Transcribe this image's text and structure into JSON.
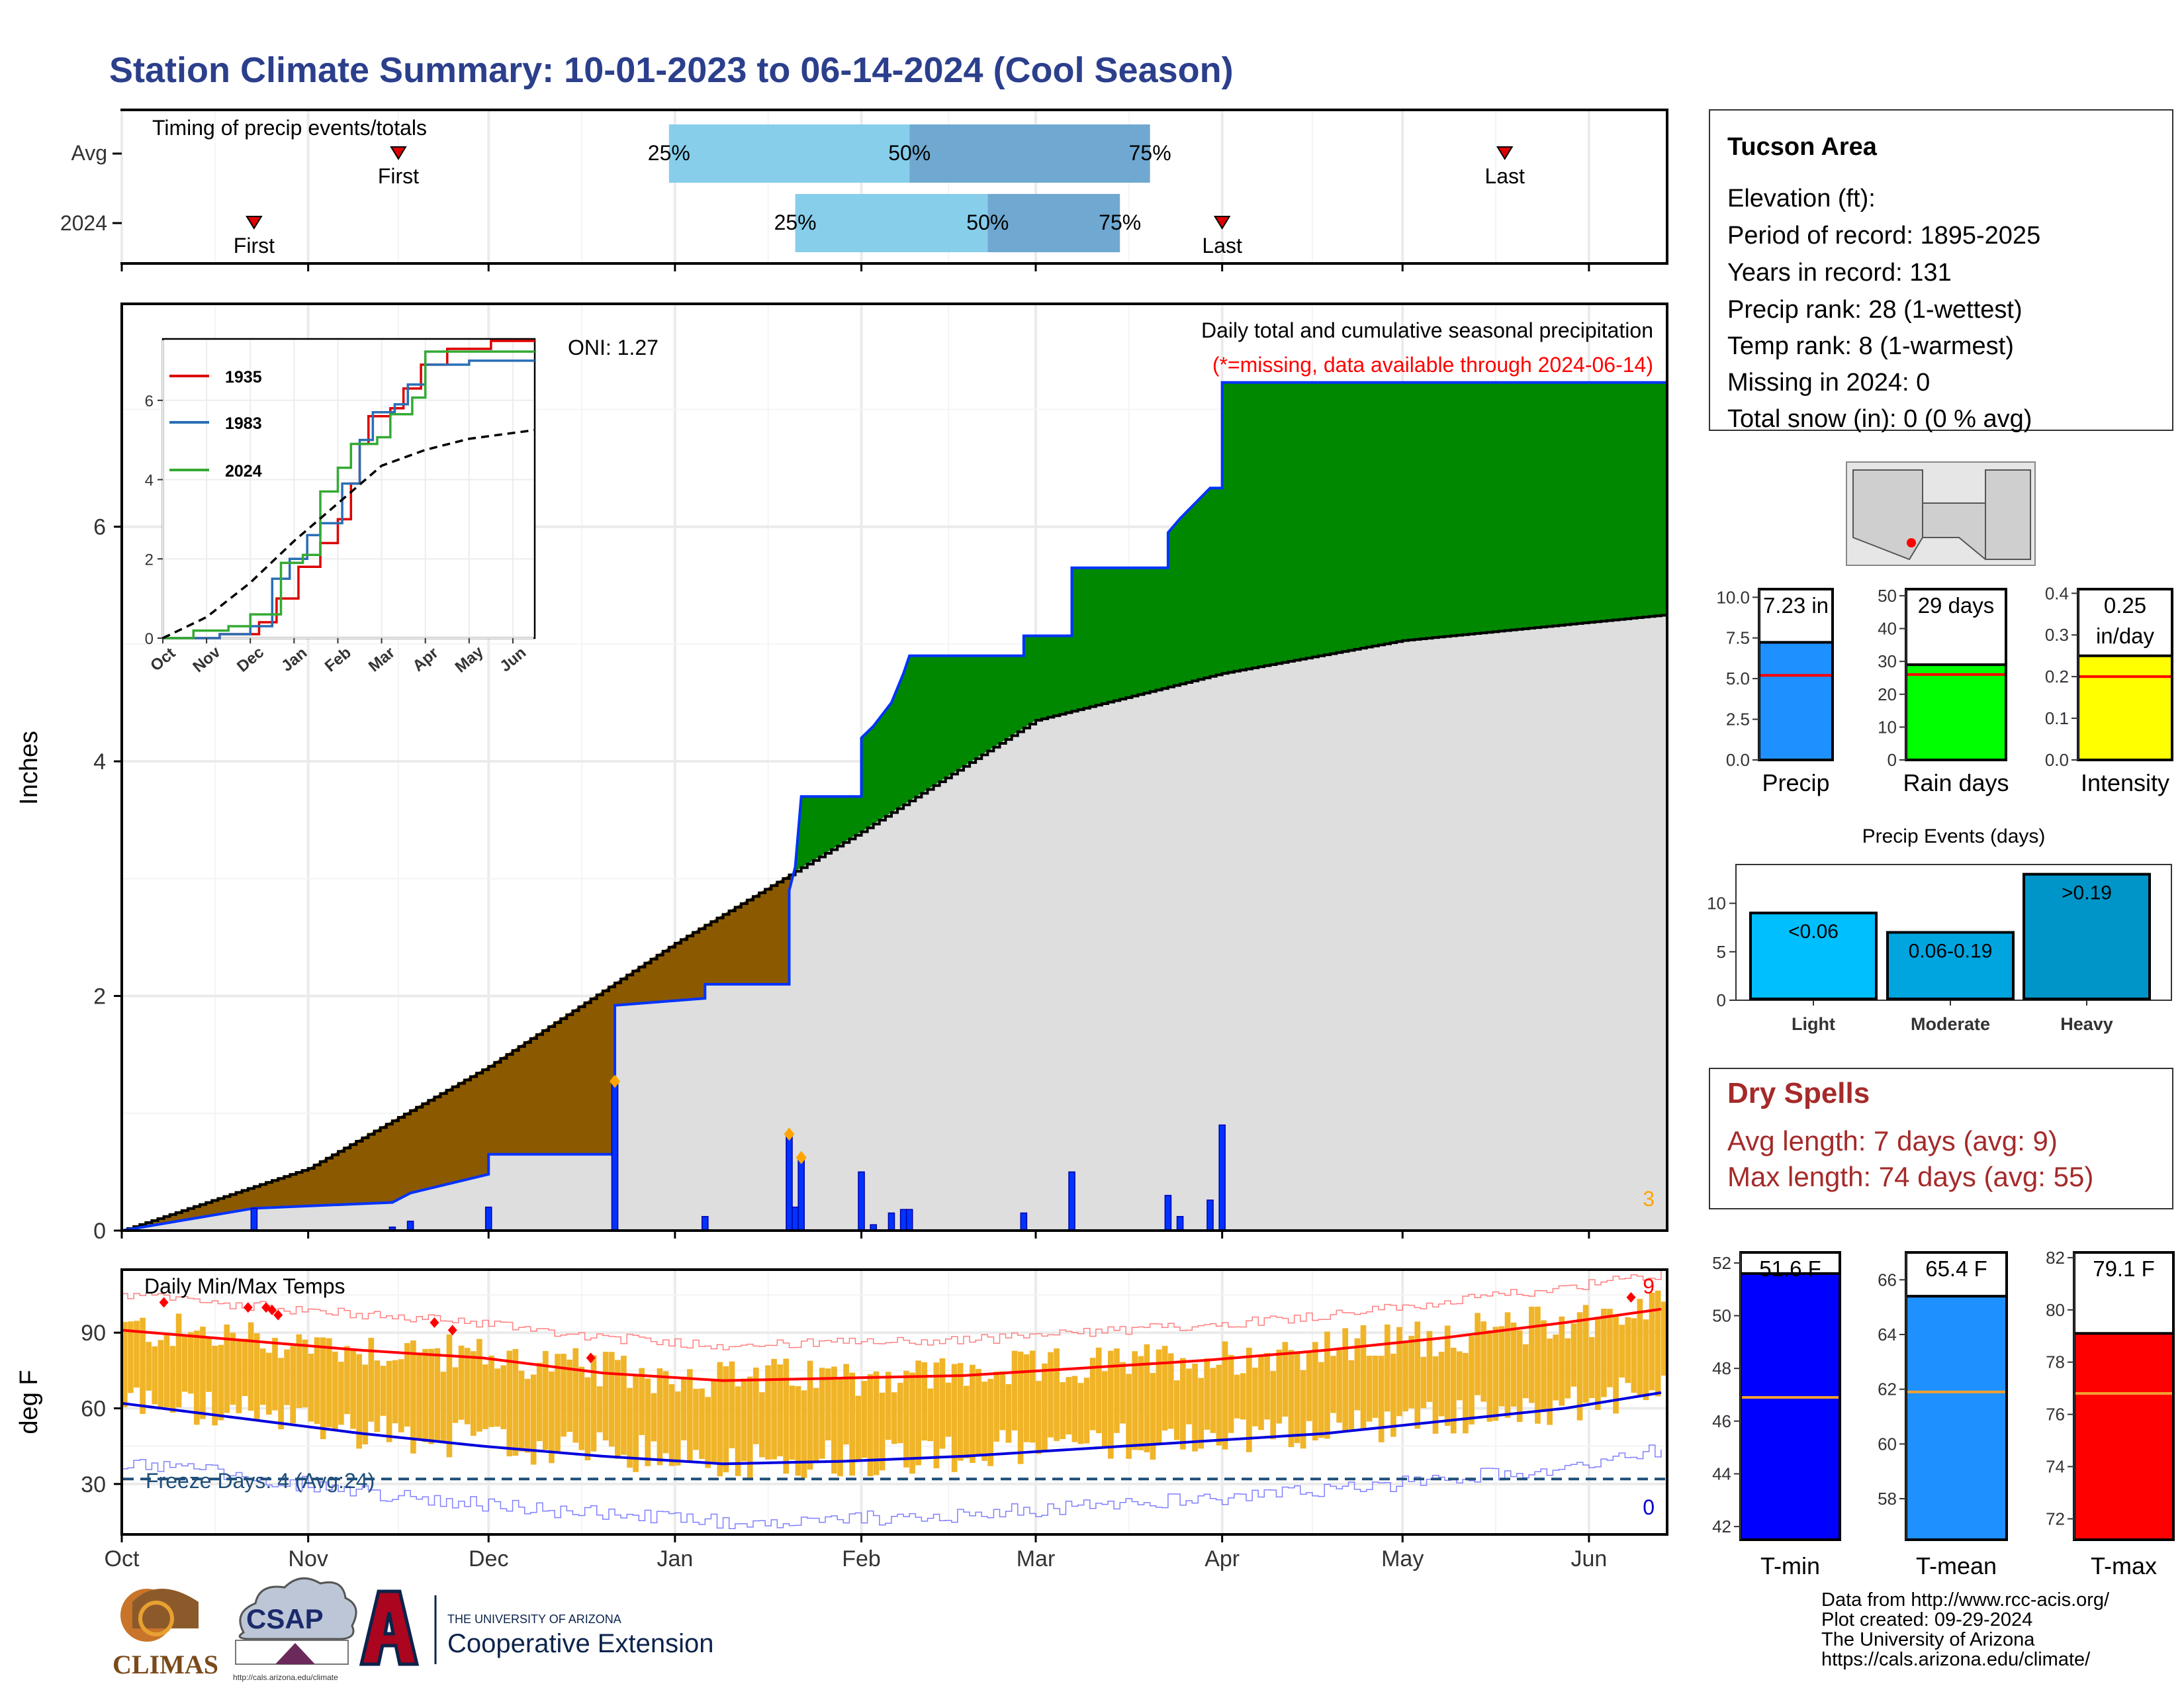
{
  "title": "Station Climate Summary: 10-01-2023 to 06-14-2024 (Cool Season)",
  "colors": {
    "title": "#2b3f8c",
    "brown": "#8b5a00",
    "green": "#008800",
    "normal_fill": "#dedede",
    "precip_blue": "#0033ff",
    "light_blue": "#87ceeb",
    "mid_blue": "#6fa8d0",
    "dry_red": "#a52a2a",
    "temp_bar": "#f0b428",
    "tmax_line": "#ff0000",
    "tmin_line": "#0000dd"
  },
  "timing": {
    "label": "Timing of precip events/totals",
    "rows": [
      "Avg",
      "2024"
    ],
    "first_label": "First",
    "last_label": "Last",
    "pct_labels": [
      "25%",
      "50%",
      "75%"
    ]
  },
  "precip_panel": {
    "ylabel": "Inches",
    "label1": "Daily total and cumulative seasonal precipitation",
    "label2": "(*=missing, data available through 2024-06-14)",
    "oni": "ONI: 1.27",
    "corner_count": "3",
    "yticks": [
      "0",
      "2",
      "4",
      "6"
    ]
  },
  "inset": {
    "legend": [
      "1935",
      "1983",
      "2024"
    ],
    "xticks": [
      "Oct",
      "Nov",
      "Dec",
      "Jan",
      "Feb",
      "Mar",
      "Apr",
      "May",
      "Jun"
    ],
    "yticks": [
      "0",
      "2",
      "4",
      "6"
    ]
  },
  "temp_panel": {
    "ylabel": "deg F",
    "label": "Daily Min/Max Temps",
    "freeze": "Freeze Days: 4 (Avg:24)",
    "count_hot": "9",
    "count_cold": "0",
    "yticks": [
      "30",
      "60",
      "90"
    ]
  },
  "months": [
    "Oct",
    "Nov",
    "Dec",
    "Jan",
    "Feb",
    "Mar",
    "Apr",
    "May",
    "Jun"
  ],
  "info": {
    "station": "Tucson Area",
    "lines": [
      "Elevation (ft):",
      "Period of record: 1895-2025",
      "Years in record: 131",
      "Precip rank: 28 (1-wettest)",
      "Temp rank: 8 (1-warmest)",
      "Missing in 2024: 0",
      "Total snow (in): 0 (0 % avg)"
    ]
  },
  "mini_bars": {
    "precip": {
      "label": "Precip",
      "value_text": "7.23 in",
      "yticks": [
        "0.0",
        "2.5",
        "5.0",
        "7.5",
        "10.0"
      ]
    },
    "rain_days": {
      "label": "Rain days",
      "value_text": "29 days",
      "yticks": [
        "0",
        "10",
        "20",
        "30",
        "40",
        "50"
      ]
    },
    "intensity": {
      "label": "Intensity",
      "value_text_1": "0.25",
      "value_text_2": "in/day",
      "yticks": [
        "0.0",
        "0.1",
        "0.2",
        "0.3",
        "0.4"
      ]
    }
  },
  "events": {
    "title": "Precip Events (days)",
    "cats": [
      "Light",
      "Moderate",
      "Heavy"
    ],
    "labels": [
      "<0.06",
      "0.06-0.19",
      ">0.19"
    ],
    "yticks": [
      "0",
      "5",
      "10"
    ]
  },
  "dry_spells": {
    "title": "Dry Spells",
    "avg": "Avg length: 7 days (avg: 9)",
    "max": "Max length: 74 days (avg: 55)"
  },
  "temp_bars": {
    "tmin": {
      "label": "T-min",
      "value_text": "51.6 F",
      "yticks": [
        "42",
        "44",
        "46",
        "48",
        "50",
        "52"
      ]
    },
    "tmean": {
      "label": "T-mean",
      "value_text": "65.4 F",
      "yticks": [
        "58",
        "60",
        "62",
        "64",
        "66"
      ]
    },
    "tmax": {
      "label": "T-max",
      "value_text": "79.1 F",
      "yticks": [
        "72",
        "74",
        "76",
        "78",
        "80",
        "82"
      ]
    }
  },
  "footer": {
    "lines": [
      "Data from http://www.rcc-acis.org/",
      "Plot created: 09-29-2024",
      "The University of Arizona",
      "https://cals.arizona.edu/climate/"
    ],
    "logo1": "CLIMAS",
    "logo2": "CSAP",
    "logo2_url": "http://cals.arizona.edu/climate",
    "logo3_small": "THE UNIVERSITY OF ARIZONA",
    "logo3_big": "Cooperative Extension"
  },
  "chart_data": [
    {
      "type": "line",
      "title": "Timing of precip events/totals",
      "rows": [
        {
          "name": "Avg",
          "first": "2023-11-16",
          "p25": "2023-12-31",
          "p50": "2024-02-09",
          "p75": "2024-03-20",
          "last": "2024-05-18"
        },
        {
          "name": "2024",
          "first": "2023-10-23",
          "p25": "2024-01-21",
          "p50": "2024-02-22",
          "p75": "2024-03-15",
          "last": "2024-04-01"
        }
      ]
    },
    {
      "type": "area",
      "title": "Daily total and cumulative seasonal precipitation",
      "ylabel": "Inches",
      "ylim": [
        0,
        7.9
      ],
      "x_start": "2023-10-01",
      "x_end": "2024-06-14",
      "cumulative_2024": [
        {
          "date": "2023-10-01",
          "value": 0
        },
        {
          "date": "2023-10-23",
          "value": 0.19
        },
        {
          "date": "2023-11-15",
          "value": 0.24
        },
        {
          "date": "2023-11-18",
          "value": 0.32
        },
        {
          "date": "2023-12-01",
          "value": 0.48
        },
        {
          "date": "2023-12-01",
          "value": 0.65
        },
        {
          "date": "2023-12-22",
          "value": 0.65
        },
        {
          "date": "2023-12-22",
          "value": 1.92
        },
        {
          "date": "2024-01-06",
          "value": 1.98
        },
        {
          "date": "2024-01-06",
          "value": 2.1
        },
        {
          "date": "2024-01-20",
          "value": 2.1
        },
        {
          "date": "2024-01-20",
          "value": 2.9
        },
        {
          "date": "2024-01-21",
          "value": 3.1
        },
        {
          "date": "2024-01-22",
          "value": 3.7
        },
        {
          "date": "2024-02-01",
          "value": 3.7
        },
        {
          "date": "2024-02-01",
          "value": 4.2
        },
        {
          "date": "2024-02-03",
          "value": 4.3
        },
        {
          "date": "2024-02-06",
          "value": 4.5
        },
        {
          "date": "2024-02-08",
          "value": 4.75
        },
        {
          "date": "2024-02-09",
          "value": 4.9
        },
        {
          "date": "2024-02-28",
          "value": 4.9
        },
        {
          "date": "2024-02-28",
          "value": 5.07
        },
        {
          "date": "2024-03-07",
          "value": 5.07
        },
        {
          "date": "2024-03-07",
          "value": 5.65
        },
        {
          "date": "2024-03-23",
          "value": 5.65
        },
        {
          "date": "2024-03-23",
          "value": 5.95
        },
        {
          "date": "2024-03-25",
          "value": 6.07
        },
        {
          "date": "2024-03-30",
          "value": 6.33
        },
        {
          "date": "2024-04-01",
          "value": 6.33
        },
        {
          "date": "2024-04-01",
          "value": 7.23
        },
        {
          "date": "2024-06-14",
          "value": 7.23
        }
      ],
      "cumulative_avg": [
        {
          "date": "2023-10-01",
          "value": 0
        },
        {
          "date": "2023-11-01",
          "value": 0.53
        },
        {
          "date": "2023-12-01",
          "value": 1.4
        },
        {
          "date": "2024-01-01",
          "value": 2.45
        },
        {
          "date": "2024-02-01",
          "value": 3.4
        },
        {
          "date": "2024-03-01",
          "value": 4.35
        },
        {
          "date": "2024-04-01",
          "value": 4.75
        },
        {
          "date": "2024-05-01",
          "value": 5.03
        },
        {
          "date": "2024-06-14",
          "value": 5.25
        }
      ],
      "daily_2024": [
        {
          "date": "2023-10-23",
          "value": 0.19
        },
        {
          "date": "2023-11-15",
          "value": 0.03
        },
        {
          "date": "2023-11-18",
          "value": 0.08
        },
        {
          "date": "2023-12-01",
          "value": 0.2
        },
        {
          "date": "2023-12-22",
          "value": 1.25
        },
        {
          "date": "2024-01-06",
          "value": 0.12
        },
        {
          "date": "2024-01-20",
          "value": 0.8
        },
        {
          "date": "2024-01-21",
          "value": 0.2
        },
        {
          "date": "2024-01-22",
          "value": 0.6
        },
        {
          "date": "2024-02-01",
          "value": 0.5
        },
        {
          "date": "2024-02-03",
          "value": 0.05
        },
        {
          "date": "2024-02-06",
          "value": 0.15
        },
        {
          "date": "2024-02-08",
          "value": 0.18
        },
        {
          "date": "2024-02-09",
          "value": 0.18
        },
        {
          "date": "2024-02-28",
          "value": 0.15
        },
        {
          "date": "2024-03-07",
          "value": 0.5
        },
        {
          "date": "2024-03-23",
          "value": 0.3
        },
        {
          "date": "2024-03-25",
          "value": 0.12
        },
        {
          "date": "2024-03-30",
          "value": 0.26
        },
        {
          "date": "2024-04-01",
          "value": 0.9
        }
      ]
    },
    {
      "type": "line",
      "title": "inset cumulative precipitation",
      "ylim": [
        0,
        7.5
      ],
      "series": [
        {
          "name": "1935",
          "color": "#dd0000",
          "points": [
            [
              0,
              0
            ],
            [
              1.3,
              0.1
            ],
            [
              2.2,
              0.4
            ],
            [
              2.6,
              1.0
            ],
            [
              3.1,
              1.8
            ],
            [
              3.6,
              2.4
            ],
            [
              4.0,
              3.0
            ],
            [
              4.3,
              3.9
            ],
            [
              4.5,
              4.9
            ],
            [
              4.7,
              5.6
            ],
            [
              5.2,
              5.8
            ],
            [
              5.5,
              6.3
            ],
            [
              5.9,
              6.9
            ],
            [
              6.5,
              7.3
            ],
            [
              7.5,
              7.5
            ],
            [
              8.5,
              7.5
            ]
          ]
        },
        {
          "name": "1983",
          "color": "#2a6fb5",
          "points": [
            [
              0,
              0
            ],
            [
              1.3,
              0.1
            ],
            [
              2.0,
              0.3
            ],
            [
              2.5,
              1.5
            ],
            [
              2.9,
              2.0
            ],
            [
              3.3,
              2.6
            ],
            [
              3.6,
              2.9
            ],
            [
              4.1,
              3.9
            ],
            [
              4.5,
              5.0
            ],
            [
              4.8,
              5.7
            ],
            [
              5.3,
              5.9
            ],
            [
              5.6,
              6.4
            ],
            [
              6.0,
              6.9
            ],
            [
              7.0,
              7.0
            ],
            [
              8.5,
              7.0
            ]
          ]
        },
        {
          "name": "2024",
          "color": "#33aa33",
          "points": [
            [
              0,
              0
            ],
            [
              0.7,
              0.19
            ],
            [
              1.5,
              0.3
            ],
            [
              2.0,
              0.6
            ],
            [
              2.7,
              1.9
            ],
            [
              3.2,
              2.1
            ],
            [
              3.6,
              3.7
            ],
            [
              4.0,
              4.3
            ],
            [
              4.3,
              4.9
            ],
            [
              4.9,
              5.07
            ],
            [
              5.2,
              5.65
            ],
            [
              5.7,
              6.07
            ],
            [
              6.0,
              7.23
            ],
            [
              8.5,
              7.23
            ]
          ]
        },
        {
          "name": "Avg",
          "dashed": true,
          "points": [
            [
              0,
              0
            ],
            [
              1,
              0.53
            ],
            [
              2,
              1.4
            ],
            [
              3,
              2.45
            ],
            [
              4,
              3.4
            ],
            [
              5,
              4.35
            ],
            [
              6,
              4.75
            ],
            [
              7,
              5.03
            ],
            [
              8.5,
              5.25
            ]
          ]
        }
      ]
    },
    {
      "type": "bar",
      "title": "Daily Min/Max Temps",
      "ylabel": "deg F",
      "ylim": [
        10,
        115
      ],
      "freeze_line": 32,
      "avg_tmax": [
        [
          0,
          91
        ],
        [
          20,
          87
        ],
        [
          40,
          83
        ],
        [
          60,
          80
        ],
        [
          80,
          74
        ],
        [
          100,
          71
        ],
        [
          120,
          72
        ],
        [
          140,
          73
        ],
        [
          160,
          76
        ],
        [
          180,
          79
        ],
        [
          200,
          83
        ],
        [
          220,
          88
        ],
        [
          240,
          94
        ],
        [
          258,
          100
        ]
      ],
      "avg_tmin": [
        [
          0,
          62
        ],
        [
          20,
          56
        ],
        [
          40,
          50
        ],
        [
          60,
          45
        ],
        [
          80,
          41
        ],
        [
          100,
          38
        ],
        [
          120,
          39
        ],
        [
          140,
          41
        ],
        [
          160,
          44
        ],
        [
          180,
          47
        ],
        [
          200,
          50
        ],
        [
          220,
          55
        ],
        [
          240,
          60
        ],
        [
          258,
          67
        ]
      ],
      "record_high_points": [
        [
          7,
          102
        ],
        [
          21,
          100
        ],
        [
          24,
          100
        ],
        [
          25,
          99
        ],
        [
          26,
          97
        ],
        [
          52,
          94
        ],
        [
          55,
          91
        ],
        [
          78,
          80
        ],
        [
          251,
          104
        ]
      ]
    },
    {
      "type": "bar",
      "title": "Precip",
      "categories": [
        "Precip"
      ],
      "values": [
        7.23
      ],
      "average": 5.2,
      "ylim": [
        0,
        10.5
      ]
    },
    {
      "type": "bar",
      "title": "Rain days",
      "categories": [
        "Rain days"
      ],
      "values": [
        29
      ],
      "average": 26,
      "ylim": [
        0,
        52
      ]
    },
    {
      "type": "bar",
      "title": "Intensity",
      "categories": [
        "Intensity"
      ],
      "values": [
        0.25
      ],
      "average": 0.2,
      "ylim": [
        0,
        0.41
      ]
    },
    {
      "type": "bar",
      "title": "Precip Events (days)",
      "categories": [
        "Light",
        "Moderate",
        "Heavy"
      ],
      "values": [
        9,
        7,
        13
      ],
      "ylim": [
        0,
        14
      ]
    },
    {
      "type": "bar",
      "title": "T-min",
      "categories": [
        "T-min"
      ],
      "values": [
        51.6
      ],
      "average": 46.9,
      "ylim": [
        41.5,
        52.4
      ]
    },
    {
      "type": "bar",
      "title": "T-mean",
      "categories": [
        "T-mean"
      ],
      "values": [
        65.4
      ],
      "average": 61.9,
      "ylim": [
        56.5,
        67
      ]
    },
    {
      "type": "bar",
      "title": "T-max",
      "categories": [
        "T-max"
      ],
      "values": [
        79.1
      ],
      "average": 76.8,
      "ylim": [
        71.2,
        82.2
      ]
    }
  ]
}
